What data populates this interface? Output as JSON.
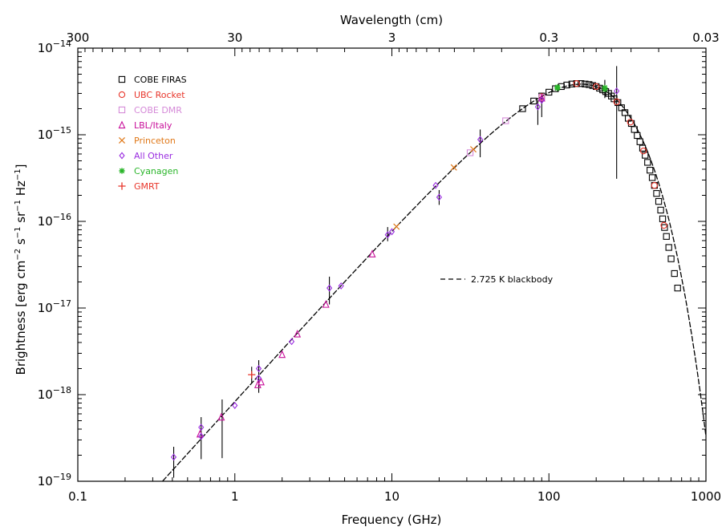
{
  "chart_data": {
    "type": "scatter",
    "title": "",
    "xlabel": "Frequency (GHz)",
    "ylabel": "Brightness [erg cm$^{-2}$ s$^{-1}$ sr$^{-1}$ Hz$^{-1}$]",
    "ylabel_parts": {
      "lead": "Brightness [erg cm",
      "e1": "−2",
      "t2": " s",
      "e2": "−1",
      "t3": " sr",
      "e3": "−1",
      "t4": " Hz",
      "e4": "−1",
      "tail": "]"
    },
    "top_xlabel": "Wavelength (cm)",
    "xscale": "log",
    "yscale": "log",
    "xlim": [
      0.1,
      1000
    ],
    "ylim": [
      1e-19,
      1e-14
    ],
    "x_ticks": [
      {
        "value": 0.1,
        "label": "0.1"
      },
      {
        "value": 1,
        "label": "1"
      },
      {
        "value": 10,
        "label": "10"
      },
      {
        "value": 100,
        "label": "100"
      },
      {
        "value": 1000,
        "label": "1000"
      }
    ],
    "top_ticks": [
      {
        "cm": 300,
        "label": "300"
      },
      {
        "cm": 30,
        "label": "30"
      },
      {
        "cm": 3,
        "label": "3"
      },
      {
        "cm": 0.3,
        "label": "0.3"
      },
      {
        "cm": 0.03,
        "label": "0.03"
      }
    ],
    "y_ticks": [
      {
        "exp": -19,
        "base": "10",
        "sup": "−19"
      },
      {
        "exp": -18,
        "base": "10",
        "sup": "−18"
      },
      {
        "exp": -17,
        "base": "10",
        "sup": "−17"
      },
      {
        "exp": -16,
        "base": "10",
        "sup": "−16"
      },
      {
        "exp": -15,
        "base": "10",
        "sup": "−15"
      },
      {
        "exp": -14,
        "base": "10",
        "sup": "−14"
      }
    ],
    "legend_position": "top-left",
    "model_line": {
      "name": "2.725 K blackbody",
      "temperature_K": 2.725,
      "style": "dashed"
    },
    "series": [
      {
        "name": "COBE FIRAS",
        "marker": "square",
        "color": "#000000",
        "points": [
          {
            "x": 68,
            "y": 2e-15
          },
          {
            "x": 80,
            "y": 2.45e-15
          },
          {
            "x": 90,
            "y": 2.8e-15
          },
          {
            "x": 100,
            "y": 3.1e-15
          },
          {
            "x": 110,
            "y": 3.4e-15
          },
          {
            "x": 120,
            "y": 3.6e-15
          },
          {
            "x": 130,
            "y": 3.75e-15
          },
          {
            "x": 140,
            "y": 3.85e-15
          },
          {
            "x": 150,
            "y": 3.9e-15
          },
          {
            "x": 160,
            "y": 3.9e-15
          },
          {
            "x": 170,
            "y": 3.85e-15
          },
          {
            "x": 180,
            "y": 3.8e-15
          },
          {
            "x": 190,
            "y": 3.7e-15
          },
          {
            "x": 200,
            "y": 3.6e-15
          },
          {
            "x": 210,
            "y": 3.45e-15
          },
          {
            "x": 220,
            "y": 3.3e-15
          },
          {
            "x": 230,
            "y": 3.15e-15
          },
          {
            "x": 240,
            "y": 3e-15
          },
          {
            "x": 250,
            "y": 2.8e-15
          },
          {
            "x": 260,
            "y": 2.6e-15
          },
          {
            "x": 275,
            "y": 2.35e-15
          },
          {
            "x": 290,
            "y": 2.05e-15
          },
          {
            "x": 305,
            "y": 1.8e-15
          },
          {
            "x": 320,
            "y": 1.55e-15
          },
          {
            "x": 335,
            "y": 1.35e-15
          },
          {
            "x": 350,
            "y": 1.15e-15
          },
          {
            "x": 365,
            "y": 9.8e-16
          },
          {
            "x": 380,
            "y": 8.3e-16
          },
          {
            "x": 395,
            "y": 7e-16
          },
          {
            "x": 410,
            "y": 5.8e-16
          },
          {
            "x": 425,
            "y": 4.8e-16
          },
          {
            "x": 440,
            "y": 3.9e-16
          },
          {
            "x": 455,
            "y": 3.2e-16
          },
          {
            "x": 470,
            "y": 2.6e-16
          },
          {
            "x": 485,
            "y": 2.1e-16
          },
          {
            "x": 500,
            "y": 1.7e-16
          },
          {
            "x": 515,
            "y": 1.35e-16
          },
          {
            "x": 530,
            "y": 1.07e-16
          },
          {
            "x": 545,
            "y": 8.5e-17
          },
          {
            "x": 560,
            "y": 6.7e-17
          },
          {
            "x": 580,
            "y": 5e-17
          },
          {
            "x": 600,
            "y": 3.7e-17
          },
          {
            "x": 630,
            "y": 2.5e-17
          },
          {
            "x": 660,
            "y": 1.7e-17
          }
        ]
      },
      {
        "name": "UBC Rocket",
        "marker": "circle",
        "color": "#e8352a",
        "points": [
          {
            "x": 90,
            "y": 2.75e-15
          },
          {
            "x": 150,
            "y": 3.9e-15
          },
          {
            "x": 200,
            "y": 3.6e-15
          },
          {
            "x": 270,
            "y": 2.4e-15
          },
          {
            "x": 330,
            "y": 1.4e-15
          },
          {
            "x": 400,
            "y": 6.5e-16
          },
          {
            "x": 470,
            "y": 2.6e-16
          },
          {
            "x": 540,
            "y": 9e-17
          }
        ]
      },
      {
        "name": "COBE DMR",
        "marker": "square",
        "color": "#d58ad8",
        "points": [
          {
            "x": 31.5,
            "y": 6.2e-16
          },
          {
            "x": 53,
            "y": 1.45e-15
          },
          {
            "x": 90,
            "y": 2.7e-15
          }
        ]
      },
      {
        "name": "LBL/Italy",
        "marker": "triangle",
        "color": "#c8109a",
        "points": [
          {
            "x": 0.6,
            "y": 3.5e-19
          },
          {
            "x": 0.82,
            "y": 5.5e-19
          },
          {
            "x": 1.4,
            "y": 1.3e-18
          },
          {
            "x": 1.47,
            "y": 1.4e-18
          },
          {
            "x": 2.0,
            "y": 2.9e-18
          },
          {
            "x": 2.5,
            "y": 5e-18
          },
          {
            "x": 3.8,
            "y": 1.1e-17
          },
          {
            "x": 7.5,
            "y": 4.2e-17
          },
          {
            "x": 90,
            "y": 2.65e-15
          }
        ]
      },
      {
        "name": "Princeton",
        "marker": "x",
        "color": "#e07818",
        "points": [
          {
            "x": 10.7,
            "y": 8.7e-17
          },
          {
            "x": 24.8,
            "y": 4.2e-16
          },
          {
            "x": 33,
            "y": 6.8e-16
          }
        ]
      },
      {
        "name": "All Other",
        "marker": "diamond",
        "color": "#9a2ce0",
        "points": [
          {
            "x": 0.408,
            "y": 1.9e-19
          },
          {
            "x": 0.61,
            "y": 4.2e-19
          },
          {
            "x": 0.61,
            "y": 3.3e-19
          },
          {
            "x": 1.0,
            "y": 7.5e-19
          },
          {
            "x": 1.42,
            "y": 2e-18
          },
          {
            "x": 1.42,
            "y": 1.55e-18
          },
          {
            "x": 2.3,
            "y": 4.1e-18
          },
          {
            "x": 4.0,
            "y": 1.7e-17
          },
          {
            "x": 4.75,
            "y": 1.8e-17
          },
          {
            "x": 9.4,
            "y": 7e-17
          },
          {
            "x": 10,
            "y": 7.6e-17
          },
          {
            "x": 19,
            "y": 2.6e-16
          },
          {
            "x": 20,
            "y": 1.9e-16
          },
          {
            "x": 36.5,
            "y": 8.8e-16
          },
          {
            "x": 85,
            "y": 2.1e-15
          },
          {
            "x": 90,
            "y": 2.5e-15
          },
          {
            "x": 270,
            "y": 3.2e-15
          }
        ]
      },
      {
        "name": "Cyanagen",
        "marker": "asterisk",
        "color": "#2ab52a",
        "points": [
          {
            "x": 113.2,
            "y": 3.45e-15
          },
          {
            "x": 113.5,
            "y": 3.55e-15
          },
          {
            "x": 226.9,
            "y": 3.5e-15
          },
          {
            "x": 227.3,
            "y": 3.35e-15
          }
        ]
      },
      {
        "name": "GMRT",
        "marker": "plus",
        "color": "#e8352a",
        "points": [
          {
            "x": 1.28,
            "y": 1.7e-18
          }
        ]
      }
    ],
    "error_bars": [
      {
        "x": 0.408,
        "lo": 1.1e-19,
        "hi": 2.5e-19
      },
      {
        "x": 0.61,
        "lo": 1.8e-19,
        "hi": 5.5e-19
      },
      {
        "x": 0.83,
        "lo": 1.85e-19,
        "hi": 8.8e-19
      },
      {
        "x": 1.42,
        "lo": 1.05e-18,
        "hi": 2.5e-18
      },
      {
        "x": 1.28,
        "lo": 1.35e-18,
        "hi": 2.1e-18
      },
      {
        "x": 4.0,
        "lo": 1.1e-17,
        "hi": 2.3e-17
      },
      {
        "x": 9.4,
        "lo": 5.9e-17,
        "hi": 8.6e-17
      },
      {
        "x": 20,
        "lo": 1.55e-16,
        "hi": 2.3e-16
      },
      {
        "x": 36.5,
        "lo": 5.5e-16,
        "hi": 1.15e-15
      },
      {
        "x": 85,
        "lo": 1.3e-15,
        "hi": 2.5e-15
      },
      {
        "x": 90,
        "lo": 1.6e-15,
        "hi": 2.9e-15
      },
      {
        "x": 227,
        "lo": 2.65e-15,
        "hi": 4.3e-15
      },
      {
        "x": 270,
        "lo": 3.1e-16,
        "hi": 6.2e-15
      }
    ]
  }
}
